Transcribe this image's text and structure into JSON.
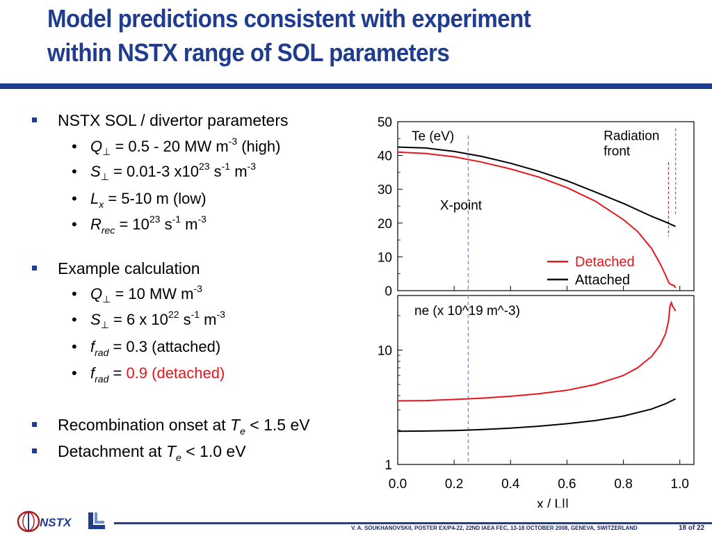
{
  "title": {
    "line1": "Model predictions consistent with experiment",
    "line2": "within NSTX range of SOL parameters"
  },
  "bullets": {
    "sol_heading": "NSTX SOL / divertor parameters",
    "q_perp": {
      "sym": "Q",
      "sub": "⊥",
      "text": " = 0.5 - 20 MW m",
      "exp": "-3",
      "tail": " (high)"
    },
    "s_perp": {
      "sym": "S",
      "sub": "⊥",
      "text": " = 0.01-3 x10",
      "exp1": "23",
      "mid": " s",
      "exp2": "-1",
      "mid2": " m",
      "exp3": "-3"
    },
    "lx": {
      "sym": "L",
      "sub": "x",
      "text": " = 5-10 m (low)"
    },
    "rrec": {
      "sym": "R",
      "sub": "rec",
      "text": " = 10",
      "exp1": "23",
      "mid": " s",
      "exp2": "-1",
      "mid2": " m",
      "exp3": "-3"
    },
    "example_heading": "Example calculation",
    "ex_q": {
      "sym": "Q",
      "sub": "⊥",
      "text": " = 10 MW m",
      "exp": "-3"
    },
    "ex_s": {
      "sym": "S",
      "sub": "⊥",
      "text": " = 6 x 10",
      "exp1": "22",
      "mid": " s",
      "exp2": "-1",
      "mid2": " m",
      "exp3": "-3"
    },
    "frad_att": {
      "sym": "f",
      "sub": "rad",
      "text": " = 0.3 (attached)"
    },
    "frad_det": {
      "sym": "f",
      "sub": "rad",
      "text": " = ",
      "red": "0.9 (detached)"
    },
    "recomb": {
      "pre": "Recombination onset at ",
      "sym": "T",
      "sub": "e",
      "post": " < 1.5 eV"
    },
    "detach": {
      "pre": "Detachment at ",
      "sym": "T",
      "sub": "e",
      "post": " < 1.0 eV"
    }
  },
  "footer": {
    "text": "V. A. SOUKHANOVSKII, POSTER EX/P4-22, 22ND  IAEA FEC, 13-18 OCTOBER 2008, GENEVA, SWITZERLAND",
    "page": "18 of 22",
    "logo_text": "NSTX"
  },
  "colors": {
    "title": "#1f3c8f",
    "detached": "#e8141c",
    "attached": "#000000",
    "xpoint_line": "#8a8aef",
    "front_line": "#7a7a7a"
  },
  "chart_data": [
    {
      "type": "line",
      "panel": "top",
      "ylabel": "Te (eV)",
      "ylim": [
        0,
        50
      ],
      "yticks": [
        0,
        10,
        20,
        30,
        40,
        50
      ],
      "xlim": [
        0,
        1.05
      ],
      "annotations": {
        "xpoint": "X-point",
        "front_line1": "Radiation",
        "front_line2": "front"
      },
      "xpoint_x": 0.25,
      "front_x_detached": 0.96,
      "front_x_attached": 0.985,
      "series": [
        {
          "name": "Detached",
          "color": "#e8141c",
          "x": [
            0.0,
            0.1,
            0.2,
            0.3,
            0.4,
            0.5,
            0.6,
            0.7,
            0.8,
            0.85,
            0.9,
            0.93,
            0.95,
            0.96,
            0.965,
            0.97,
            0.98,
            0.985
          ],
          "y": [
            41,
            40.6,
            39.6,
            38,
            36,
            33.6,
            30.5,
            26.5,
            21,
            17.5,
            12.5,
            8,
            4.5,
            2.5,
            2,
            1.8,
            1.5,
            0.8
          ]
        },
        {
          "name": "Attached",
          "color": "#000000",
          "x": [
            0.0,
            0.1,
            0.2,
            0.3,
            0.4,
            0.5,
            0.6,
            0.7,
            0.8,
            0.9,
            0.95,
            0.985
          ],
          "y": [
            42.5,
            42.2,
            41.2,
            39.7,
            37.7,
            35.3,
            32.5,
            29.2,
            25.8,
            22,
            20.3,
            19
          ]
        }
      ]
    },
    {
      "type": "line",
      "panel": "bottom",
      "ylabel": "ne (x 10^19 m^-3)",
      "yscale": "log",
      "ylim": [
        1,
        30
      ],
      "yticks": [
        1,
        10
      ],
      "xlabel": "x / L||",
      "xlim": [
        0,
        1.05
      ],
      "xticks": [
        "0.0",
        "0.2",
        "0.4",
        "0.6",
        "0.8",
        "1.0"
      ],
      "series": [
        {
          "name": "Detached",
          "color": "#e8141c",
          "x": [
            0.0,
            0.1,
            0.2,
            0.3,
            0.4,
            0.5,
            0.6,
            0.7,
            0.8,
            0.85,
            0.9,
            0.93,
            0.95,
            0.96,
            0.965,
            0.97,
            0.975,
            0.98,
            0.985
          ],
          "y": [
            3.6,
            3.62,
            3.7,
            3.8,
            3.95,
            4.15,
            4.45,
            5.0,
            6.0,
            7.0,
            8.8,
            11,
            14,
            18,
            24,
            26,
            24,
            23,
            22
          ]
        },
        {
          "name": "Attached",
          "color": "#000000",
          "x": [
            0.0,
            0.1,
            0.2,
            0.3,
            0.4,
            0.5,
            0.6,
            0.7,
            0.8,
            0.9,
            0.95,
            0.985
          ],
          "y": [
            1.95,
            1.96,
            1.98,
            2.02,
            2.08,
            2.16,
            2.27,
            2.42,
            2.65,
            3.05,
            3.4,
            3.75
          ]
        }
      ]
    }
  ]
}
